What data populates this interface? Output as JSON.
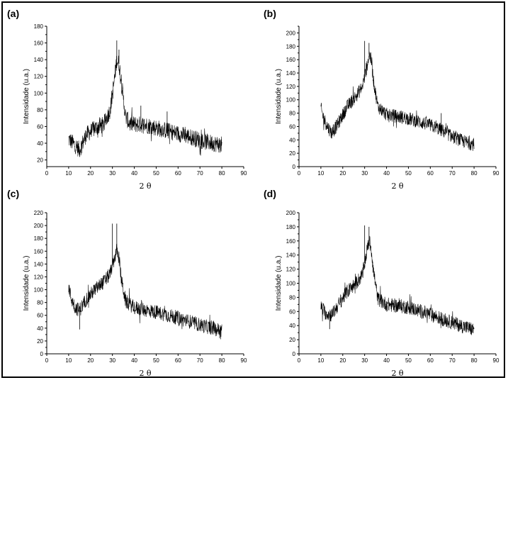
{
  "figure": {
    "colors": {
      "line": "#000000",
      "background": "#ffffff",
      "border": "#000000"
    }
  },
  "chart_data": [
    {
      "label": "(a)",
      "type": "line",
      "xlabel": "2 θ",
      "ylabel": "Intensidade (u.a.)",
      "xlim": [
        0,
        90
      ],
      "ylim": [
        12,
        180
      ],
      "xticks": [
        0,
        10,
        20,
        30,
        40,
        50,
        60,
        70,
        80,
        90
      ],
      "yticks": [
        20,
        40,
        60,
        80,
        100,
        120,
        140,
        160,
        180
      ],
      "series": [
        {
          "x_range": [
            10,
            80
          ],
          "profile": [
            [
              10,
              45
            ],
            [
              12,
              40
            ],
            [
              15,
              32
            ],
            [
              18,
              50
            ],
            [
              22,
              58
            ],
            [
              26,
              62
            ],
            [
              29,
              80
            ],
            [
              31,
              118
            ],
            [
              32,
              140
            ],
            [
              33,
              135
            ],
            [
              34,
              115
            ],
            [
              36,
              72
            ],
            [
              38,
              63
            ],
            [
              45,
              62
            ],
            [
              55,
              55
            ],
            [
              65,
              48
            ],
            [
              72,
              42
            ],
            [
              80,
              38
            ]
          ],
          "noise": 10,
          "spikes": [
            [
              32,
              163
            ],
            [
              33,
              152
            ],
            [
              43,
              85
            ],
            [
              55,
              78
            ]
          ]
        }
      ]
    },
    {
      "label": "(b)",
      "type": "line",
      "xlabel": "2 θ",
      "ylabel": "Intensidade (u.a.)",
      "xlim": [
        0,
        90
      ],
      "ylim": [
        0,
        210
      ],
      "xticks": [
        0,
        10,
        20,
        30,
        40,
        50,
        60,
        70,
        80,
        90
      ],
      "yticks": [
        0,
        20,
        40,
        60,
        80,
        100,
        120,
        140,
        160,
        180,
        200
      ],
      "series": [
        {
          "x_range": [
            10,
            80
          ],
          "profile": [
            [
              10,
              88
            ],
            [
              11,
              75
            ],
            [
              13,
              60
            ],
            [
              15,
              50
            ],
            [
              18,
              65
            ],
            [
              22,
              90
            ],
            [
              26,
              105
            ],
            [
              29,
              120
            ],
            [
              31,
              150
            ],
            [
              32,
              168
            ],
            [
              33,
              160
            ],
            [
              34,
              130
            ],
            [
              36,
              90
            ],
            [
              40,
              78
            ],
            [
              50,
              72
            ],
            [
              60,
              62
            ],
            [
              65,
              55
            ],
            [
              70,
              45
            ],
            [
              75,
              38
            ],
            [
              80,
              33
            ]
          ],
          "noise": 10,
          "spikes": [
            [
              30,
              188
            ],
            [
              32,
              185
            ],
            [
              65,
              80
            ]
          ]
        }
      ]
    },
    {
      "label": "(c)",
      "type": "line",
      "xlabel": "2 θ",
      "ylabel": "Intensidade (u.a.)",
      "xlim": [
        0,
        90
      ],
      "ylim": [
        0,
        220
      ],
      "xticks": [
        0,
        10,
        20,
        30,
        40,
        50,
        60,
        70,
        80,
        90
      ],
      "yticks": [
        0,
        20,
        40,
        60,
        80,
        100,
        120,
        140,
        160,
        180,
        200,
        220
      ],
      "series": [
        {
          "x_range": [
            10,
            80
          ],
          "profile": [
            [
              10,
              105
            ],
            [
              11,
              88
            ],
            [
              13,
              72
            ],
            [
              15,
              68
            ],
            [
              18,
              85
            ],
            [
              22,
              100
            ],
            [
              26,
              112
            ],
            [
              29,
              125
            ],
            [
              31,
              150
            ],
            [
              32,
              162
            ],
            [
              33,
              150
            ],
            [
              34,
              118
            ],
            [
              36,
              82
            ],
            [
              40,
              72
            ],
            [
              50,
              65
            ],
            [
              60,
              56
            ],
            [
              70,
              45
            ],
            [
              80,
              36
            ]
          ],
          "noise": 11,
          "spikes": [
            [
              30,
              203
            ],
            [
              32,
              203
            ],
            [
              15,
              38
            ]
          ]
        }
      ]
    },
    {
      "label": "(d)",
      "type": "line",
      "xlabel": "2 θ",
      "ylabel": "Intensidade (u.a.)",
      "xlim": [
        0,
        90
      ],
      "ylim": [
        0,
        200
      ],
      "xticks": [
        0,
        10,
        20,
        30,
        40,
        50,
        60,
        70,
        80,
        90
      ],
      "yticks": [
        0,
        20,
        40,
        60,
        80,
        100,
        120,
        140,
        160,
        180,
        200
      ],
      "series": [
        {
          "x_range": [
            10,
            80
          ],
          "profile": [
            [
              10,
              68
            ],
            [
              12,
              58
            ],
            [
              15,
              55
            ],
            [
              18,
              70
            ],
            [
              22,
              88
            ],
            [
              26,
              100
            ],
            [
              29,
              112
            ],
            [
              31,
              145
            ],
            [
              32,
              160
            ],
            [
              33,
              150
            ],
            [
              34,
              118
            ],
            [
              36,
              78
            ],
            [
              40,
              70
            ],
            [
              50,
              66
            ],
            [
              60,
              56
            ],
            [
              70,
              44
            ],
            [
              80,
              34
            ]
          ],
          "noise": 10,
          "spikes": [
            [
              30,
              182
            ],
            [
              32,
              180
            ],
            [
              14,
              35
            ]
          ]
        }
      ]
    }
  ]
}
